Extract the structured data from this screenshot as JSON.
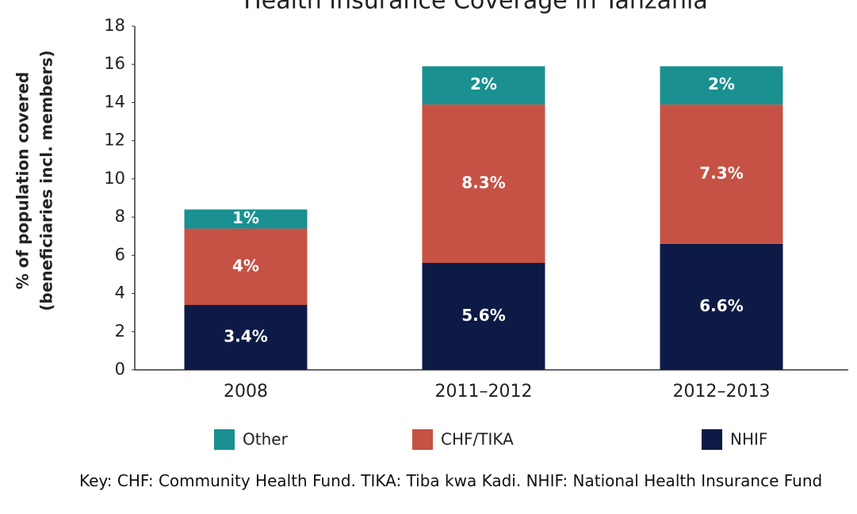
{
  "chart_data": {
    "type": "stacked_bar",
    "title": "Health Insurance Coverage in Tanzania",
    "ylabel": [
      "% of population covered",
      "(beneficiaries incl. members)"
    ],
    "categories": [
      "2008",
      "2011–2012",
      "2012–2013"
    ],
    "series": [
      {
        "name": "NHIF",
        "color": "#0d1a45",
        "values": [
          3.4,
          5.6,
          6.6
        ],
        "value_labels": [
          "3.4%",
          "5.6%",
          "6.6%"
        ]
      },
      {
        "name": "CHF/TIKA",
        "color": "#c55244",
        "values": [
          4,
          8.3,
          7.3
        ],
        "value_labels": [
          "4%",
          "8.3%",
          "7.3%"
        ]
      },
      {
        "name": "Other",
        "color": "#1a9090",
        "values": [
          1,
          2,
          2
        ],
        "value_labels": [
          "1%",
          "2%",
          "2%"
        ]
      }
    ],
    "ylim": [
      0,
      18
    ],
    "yticks": [
      0,
      2,
      4,
      6,
      8,
      10,
      12,
      14,
      16,
      18
    ],
    "note": "Key: CHF: Community Health Fund. TIKA: Tiba kwa Kadi. NHIF: National Health Insurance Fund"
  }
}
